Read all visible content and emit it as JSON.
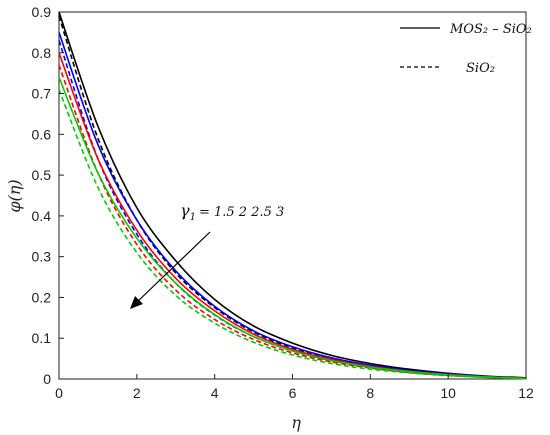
{
  "chart_data": {
    "type": "line",
    "xlabel": "η",
    "ylabel": "φ(η)",
    "xlim": [
      0,
      12
    ],
    "ylim": [
      0,
      0.9
    ],
    "xticks": [
      "0",
      "2",
      "4",
      "6",
      "8",
      "10",
      "12"
    ],
    "yticks": [
      "0",
      "0.1",
      "0.2",
      "0.3",
      "0.4",
      "0.5",
      "0.6",
      "0.7",
      "0.8",
      "0.9"
    ],
    "grid": false,
    "legend_position": "top-right",
    "legend": [
      {
        "label": "MOS₂ – SiO₂",
        "style": "solid"
      },
      {
        "label": "SiO₂",
        "style": "dashed"
      }
    ],
    "annotation": {
      "symbol": "γ",
      "subscript": "1",
      "text": "=  1.5  2  2.5  3",
      "arrow": "points toward decreasing φ"
    },
    "colors": {
      "1.5": "#000000",
      "2": "#0000ff",
      "2.5": "#ff0000",
      "3": "#00cc00"
    },
    "x": [
      0,
      1,
      2,
      3,
      4,
      5,
      6,
      7,
      8,
      9,
      10,
      11,
      12
    ],
    "series": [
      {
        "group": "MOS2-SiO2",
        "gamma": "1.5",
        "style": "solid",
        "values": [
          0.9,
          0.62,
          0.42,
          0.29,
          0.195,
          0.13,
          0.088,
          0.058,
          0.038,
          0.024,
          0.014,
          0.007,
          0.003
        ]
      },
      {
        "group": "SiO2",
        "gamma": "1.5",
        "style": "dashed",
        "values": [
          0.89,
          0.59,
          0.39,
          0.26,
          0.175,
          0.115,
          0.076,
          0.05,
          0.032,
          0.02,
          0.012,
          0.006,
          0.002
        ]
      },
      {
        "group": "MOS2-SiO2",
        "gamma": "2",
        "style": "solid",
        "values": [
          0.85,
          0.575,
          0.39,
          0.265,
          0.178,
          0.118,
          0.079,
          0.052,
          0.034,
          0.021,
          0.013,
          0.006,
          0.002
        ]
      },
      {
        "group": "SiO2",
        "gamma": "2",
        "style": "dashed",
        "values": [
          0.83,
          0.54,
          0.355,
          0.235,
          0.157,
          0.104,
          0.069,
          0.045,
          0.029,
          0.018,
          0.011,
          0.005,
          0.002
        ]
      },
      {
        "group": "MOS2-SiO2",
        "gamma": "2.5",
        "style": "solid",
        "values": [
          0.8,
          0.54,
          0.365,
          0.247,
          0.167,
          0.11,
          0.073,
          0.048,
          0.031,
          0.019,
          0.011,
          0.005,
          0.002
        ]
      },
      {
        "group": "SiO2",
        "gamma": "2.5",
        "style": "dashed",
        "values": [
          0.77,
          0.505,
          0.33,
          0.218,
          0.146,
          0.097,
          0.064,
          0.042,
          0.027,
          0.016,
          0.009,
          0.004,
          0.001
        ]
      },
      {
        "group": "MOS2-SiO2",
        "gamma": "3",
        "style": "solid",
        "values": [
          0.74,
          0.505,
          0.345,
          0.235,
          0.158,
          0.104,
          0.069,
          0.045,
          0.029,
          0.018,
          0.01,
          0.005,
          0.001
        ]
      },
      {
        "group": "SiO2",
        "gamma": "3",
        "style": "dashed",
        "values": [
          0.71,
          0.47,
          0.31,
          0.205,
          0.137,
          0.09,
          0.059,
          0.038,
          0.024,
          0.015,
          0.008,
          0.004,
          0.001
        ]
      }
    ]
  }
}
